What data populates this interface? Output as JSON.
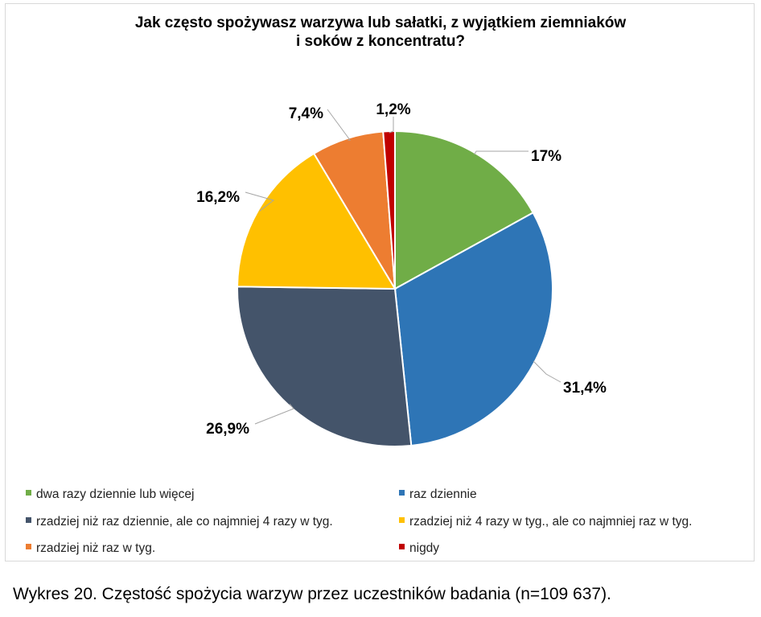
{
  "chart_data": {
    "type": "pie",
    "title_lines": [
      "Jak często spożywasz warzywa lub sałatki, z wyjątkiem ziemniaków",
      "i soków z koncentratu?"
    ],
    "slices": [
      {
        "name": "dwa razy dziennie lub więcej",
        "value": 17,
        "label": "17%",
        "color": "#70ad47"
      },
      {
        "name": "raz dziennie",
        "value": 31.4,
        "label": "31,4%",
        "color": "#2e75b6"
      },
      {
        "name": "rzadziej niż raz dziennie, ale co najmniej 4 razy w tyg.",
        "value": 26.9,
        "label": "26,9%",
        "color": "#44546a"
      },
      {
        "name": "rzadziej niż 4 razy w tyg., ale co najmniej raz w tyg.",
        "value": 16.2,
        "label": "16,2%",
        "color": "#ffc000"
      },
      {
        "name": "rzadziej niż raz w tyg.",
        "value": 7.4,
        "label": "7,4%",
        "color": "#ed7d31"
      },
      {
        "name": "nigdy",
        "value": 1.2,
        "label": "1,2%",
        "color": "#c00000"
      }
    ],
    "legend_position": "bottom"
  },
  "caption": "Wykres 20. Częstość spożycia warzyw przez uczestników badania (n=109 637)."
}
